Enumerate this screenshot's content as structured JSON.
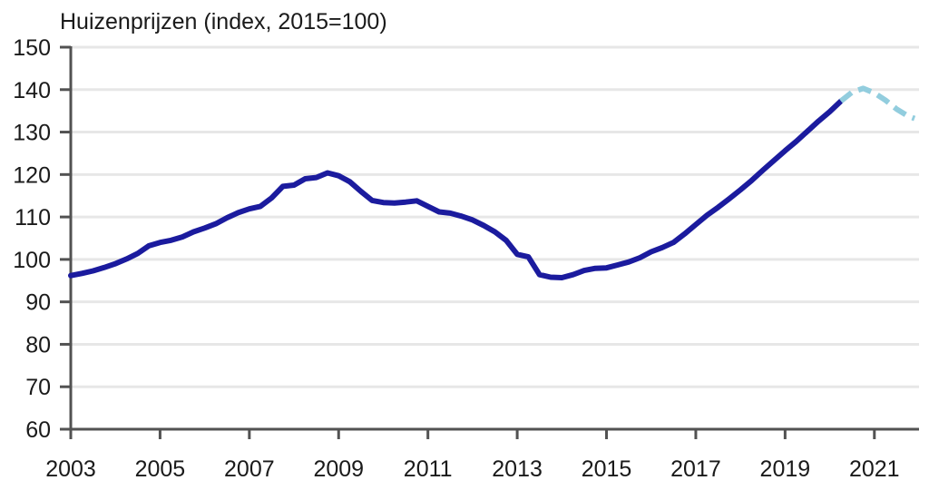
{
  "chart_data": {
    "type": "line",
    "title": "Huizenprijzen (index, 2015=100)",
    "xlabel": "",
    "ylabel": "",
    "xlim": [
      2003,
      2022
    ],
    "ylim": [
      60,
      150
    ],
    "y_ticks": [
      60,
      70,
      80,
      90,
      100,
      110,
      120,
      130,
      140,
      150
    ],
    "x_ticks": [
      2003,
      2005,
      2007,
      2009,
      2011,
      2013,
      2015,
      2017,
      2019,
      2021
    ],
    "grid": "horizontal-only",
    "legend": "none",
    "series": [
      {
        "name": "huizenprijzen-index",
        "style": "solid",
        "color": "#1b1b9e",
        "x": [
          2003.0,
          2003.25,
          2003.5,
          2003.75,
          2004.0,
          2004.25,
          2004.5,
          2004.75,
          2005.0,
          2005.25,
          2005.5,
          2005.75,
          2006.0,
          2006.25,
          2006.5,
          2006.75,
          2007.0,
          2007.25,
          2007.5,
          2007.75,
          2008.0,
          2008.25,
          2008.5,
          2008.75,
          2009.0,
          2009.25,
          2009.5,
          2009.75,
          2010.0,
          2010.25,
          2010.5,
          2010.75,
          2011.0,
          2011.25,
          2011.5,
          2011.75,
          2012.0,
          2012.25,
          2012.5,
          2012.75,
          2013.0,
          2013.25,
          2013.5,
          2013.75,
          2014.0,
          2014.25,
          2014.5,
          2014.75,
          2015.0,
          2015.25,
          2015.5,
          2015.75,
          2016.0,
          2016.25,
          2016.5,
          2016.75,
          2017.0,
          2017.25,
          2017.5,
          2017.75,
          2018.0,
          2018.25,
          2018.5,
          2018.75,
          2019.0,
          2019.25,
          2019.5,
          2019.75,
          2020.0,
          2020.25
        ],
        "values": [
          96.2,
          96.7,
          97.3,
          98.1,
          99.0,
          100.1,
          101.4,
          103.2,
          104.0,
          104.5,
          105.3,
          106.5,
          107.4,
          108.4,
          109.8,
          111.0,
          111.9,
          112.5,
          114.5,
          117.2,
          117.5,
          119.0,
          119.3,
          120.4,
          119.7,
          118.3,
          116.0,
          113.9,
          113.4,
          113.3,
          113.5,
          113.8,
          112.5,
          111.2,
          110.9,
          110.2,
          109.3,
          108.0,
          106.5,
          104.5,
          101.2,
          100.6,
          96.4,
          95.8,
          95.7,
          96.4,
          97.4,
          97.9,
          98.0,
          98.7,
          99.4,
          100.4,
          101.8,
          102.8,
          104.0,
          106.0,
          108.2,
          110.4,
          112.3,
          114.3,
          116.4,
          118.6,
          121.0,
          123.3,
          125.6,
          127.8,
          130.2,
          132.6,
          134.8,
          137.3
        ]
      },
      {
        "name": "huizenprijzen-raming",
        "style": "dashed",
        "color": "#92cdde",
        "x": [
          2020.25,
          2020.5,
          2020.75,
          2021.0,
          2021.25,
          2021.5,
          2021.75,
          2021.9
        ],
        "values": [
          137.3,
          139.4,
          140.3,
          139.2,
          137.5,
          135.4,
          133.8,
          133.2
        ]
      }
    ]
  },
  "colors": {
    "text": "#1a1a1a",
    "gridline": "#e7e7e7",
    "axis": "#525252",
    "background": "#ffffff",
    "line_solid": "#1b1b9e",
    "line_dashed": "#92cdde"
  }
}
